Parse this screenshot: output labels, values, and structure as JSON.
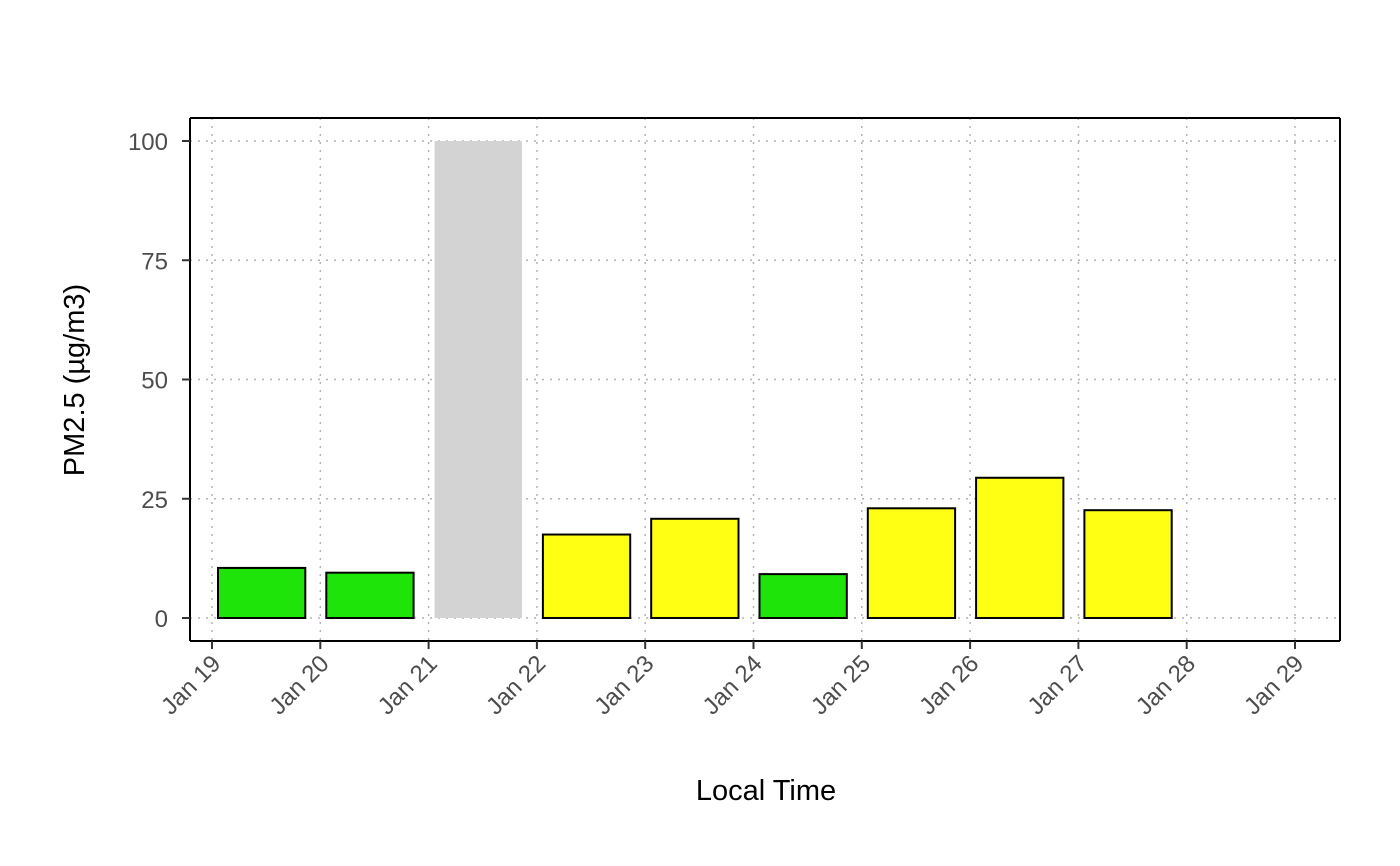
{
  "chart_data": {
    "type": "bar",
    "title": "",
    "xlabel": "Local Time",
    "ylabel": "PM2.5 (µg/m3)",
    "ylim": [
      0,
      100
    ],
    "yticks": [
      0,
      25,
      50,
      75,
      100
    ],
    "x_axis": {
      "type": "date",
      "range": [
        "2022-01-19",
        "2022-01-29"
      ],
      "tick_dates": [
        "2022-01-19",
        "2022-01-20",
        "2022-01-21",
        "2022-01-22",
        "2022-01-23",
        "2022-01-24",
        "2022-01-25",
        "2022-01-26",
        "2022-01-27",
        "2022-01-28",
        "2022-01-29"
      ],
      "tick_labels": [
        "Jan 19",
        "Jan 20",
        "Jan 21",
        "Jan 22",
        "Jan 23",
        "Jan 24",
        "Jan 25",
        "Jan 26",
        "Jan 27",
        "Jan 28",
        "Jan 29"
      ]
    },
    "grid": true,
    "bars": [
      {
        "date": "2022-01-19",
        "value": 10.5,
        "color": "#1ee40a",
        "missing": false
      },
      {
        "date": "2022-01-20",
        "value": 9.5,
        "color": "#1ee40a",
        "missing": false
      },
      {
        "date": "2022-01-21",
        "value": 100,
        "color": "#d3d3d3",
        "missing": true
      },
      {
        "date": "2022-01-22",
        "value": 17.5,
        "color": "#ffff14",
        "missing": false
      },
      {
        "date": "2022-01-23",
        "value": 20.8,
        "color": "#ffff14",
        "missing": false
      },
      {
        "date": "2022-01-24",
        "value": 9.2,
        "color": "#1ee40a",
        "missing": false
      },
      {
        "date": "2022-01-25",
        "value": 23.0,
        "color": "#ffff14",
        "missing": false
      },
      {
        "date": "2022-01-26",
        "value": 29.4,
        "color": "#ffff14",
        "missing": false
      },
      {
        "date": "2022-01-27",
        "value": 22.6,
        "color": "#ffff14",
        "missing": false
      }
    ]
  }
}
